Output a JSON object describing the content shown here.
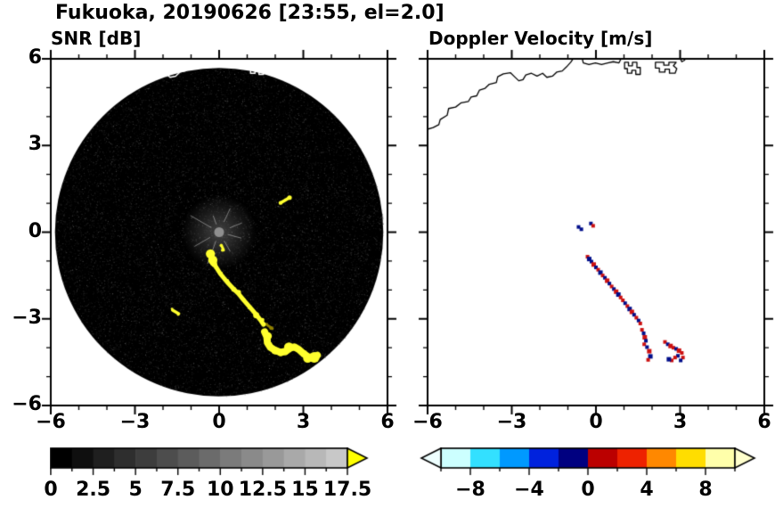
{
  "figure": {
    "title": "Fukuoka, 20190626 [23:55, el=2.0]"
  },
  "panels": {
    "snr": {
      "title": "SNR [dB]"
    },
    "velocity": {
      "title": "Doppler Velocity [m/s]"
    }
  },
  "axes": {
    "xmin": -6,
    "xmax": 6,
    "minor_step": 1,
    "xtick_values": [
      -6,
      -3,
      0,
      3,
      6
    ],
    "xtick_labels": [
      "−6",
      "−3",
      "0",
      "3",
      "6"
    ],
    "ytick_values": [
      6,
      3,
      0,
      -3,
      -6
    ],
    "ytick_labels": [
      "6",
      "3",
      "0",
      "−3",
      "−6"
    ]
  },
  "coastline": [
    {
      "closed": false,
      "pts": [
        [
          -6.05,
          3.55
        ],
        [
          -5.8,
          3.62
        ],
        [
          -5.6,
          3.72
        ],
        [
          -5.55,
          3.9
        ],
        [
          -5.3,
          4.05
        ],
        [
          -5.25,
          4.28
        ],
        [
          -5.0,
          4.33
        ],
        [
          -4.8,
          4.48
        ],
        [
          -4.55,
          4.52
        ],
        [
          -4.45,
          4.68
        ],
        [
          -4.25,
          4.72
        ],
        [
          -4.15,
          4.92
        ],
        [
          -3.95,
          4.98
        ],
        [
          -3.8,
          5.12
        ],
        [
          -3.55,
          5.18
        ],
        [
          -3.5,
          5.38
        ],
        [
          -3.3,
          5.48
        ],
        [
          -3.05,
          5.52
        ],
        [
          -2.9,
          5.38
        ],
        [
          -2.75,
          5.24
        ],
        [
          -2.6,
          5.28
        ],
        [
          -2.5,
          5.44
        ],
        [
          -2.3,
          5.5
        ],
        [
          -2.1,
          5.4
        ],
        [
          -1.9,
          5.5
        ],
        [
          -1.75,
          5.36
        ],
        [
          -1.55,
          5.4
        ],
        [
          -1.4,
          5.54
        ],
        [
          -1.2,
          5.58
        ],
        [
          -1.05,
          5.72
        ],
        [
          -0.9,
          5.88
        ],
        [
          -0.78,
          6.05
        ]
      ]
    },
    {
      "closed": false,
      "pts": [
        [
          -0.5,
          6.05
        ],
        [
          -0.45,
          5.86
        ],
        [
          -0.25,
          5.8
        ],
        [
          -0.02,
          5.86
        ],
        [
          0.2,
          5.8
        ],
        [
          0.42,
          5.86
        ],
        [
          0.62,
          5.9
        ],
        [
          0.82,
          5.86
        ],
        [
          0.92,
          6.05
        ]
      ]
    },
    {
      "closed": true,
      "pts": [
        [
          1.02,
          5.88
        ],
        [
          1.02,
          5.66
        ],
        [
          1.12,
          5.66
        ],
        [
          1.12,
          5.5
        ],
        [
          1.28,
          5.5
        ],
        [
          1.28,
          5.6
        ],
        [
          1.42,
          5.6
        ],
        [
          1.42,
          5.46
        ],
        [
          1.58,
          5.46
        ],
        [
          1.58,
          5.7
        ],
        [
          1.46,
          5.7
        ],
        [
          1.46,
          5.88
        ],
        [
          1.3,
          5.88
        ],
        [
          1.3,
          5.76
        ],
        [
          1.16,
          5.76
        ],
        [
          1.16,
          5.88
        ]
      ]
    },
    {
      "closed": true,
      "pts": [
        [
          2.12,
          5.88
        ],
        [
          2.12,
          5.68
        ],
        [
          2.26,
          5.68
        ],
        [
          2.26,
          5.54
        ],
        [
          2.46,
          5.54
        ],
        [
          2.46,
          5.64
        ],
        [
          2.62,
          5.64
        ],
        [
          2.62,
          5.5
        ],
        [
          2.82,
          5.5
        ],
        [
          2.88,
          5.66
        ],
        [
          2.76,
          5.76
        ],
        [
          2.86,
          5.88
        ],
        [
          2.6,
          5.88
        ],
        [
          2.6,
          5.78
        ],
        [
          2.42,
          5.78
        ],
        [
          2.42,
          5.88
        ]
      ]
    },
    {
      "closed": false,
      "pts": [
        [
          3.0,
          6.02
        ],
        [
          3.06,
          5.9
        ],
        [
          3.18,
          5.96
        ]
      ]
    }
  ],
  "chart_data": [
    {
      "type": "heatmap",
      "panel": "snr",
      "title": "SNR [dB]",
      "xlim": [
        -6,
        6
      ],
      "ylim": [
        -6,
        6
      ],
      "scan_radius": 5.85,
      "background": "black noise-speckled scan disc centered at (0,0)",
      "colorbar": {
        "min": 0,
        "max": 17.5,
        "step": 1.25,
        "tick_values": [
          0,
          2.5,
          5,
          7.5,
          10,
          12.5,
          15,
          17.5
        ],
        "tick_labels": [
          "0",
          "2.5",
          "5",
          "7.5",
          "10",
          "12.5",
          "15",
          "17.5"
        ],
        "colors": [
          "#000000",
          "#0f0f0f",
          "#1f1f1f",
          "#2e2e2e",
          "#3d3d3d",
          "#4d4d4d",
          "#5c5c5c",
          "#6b6b6b",
          "#7b7b7b",
          "#8a8a8a",
          "#999999",
          "#a9a9a9",
          "#b8b8b8",
          "#c8c8c8"
        ],
        "over_arrow": "#ffff00"
      },
      "echo_features": [
        {
          "color": "#ffff2e",
          "width": 7,
          "pts": [
            [
              -0.32,
              -0.78
            ],
            [
              -0.22,
              -0.95
            ],
            [
              -0.18,
              -1.1
            ]
          ]
        },
        {
          "color": "#ffff2e",
          "width": 5,
          "pts": [
            [
              -0.18,
              -1.1
            ],
            [
              0.05,
              -1.45
            ],
            [
              0.28,
              -1.72
            ],
            [
              0.5,
              -1.95
            ],
            [
              0.68,
              -2.12
            ],
            [
              0.9,
              -2.38
            ],
            [
              1.1,
              -2.6
            ],
            [
              1.32,
              -2.85
            ],
            [
              1.5,
              -3.08
            ],
            [
              1.58,
              -3.2
            ]
          ]
        },
        {
          "color": "#ffff2e",
          "width": 8,
          "pts": [
            [
              1.62,
              -3.45
            ],
            [
              1.7,
              -3.62
            ],
            [
              1.72,
              -3.82
            ],
            [
              1.82,
              -3.98
            ],
            [
              1.98,
              -4.08
            ],
            [
              2.18,
              -4.16
            ],
            [
              2.38,
              -4.12
            ],
            [
              2.52,
              -4.02
            ],
            [
              2.68,
              -3.97
            ],
            [
              2.84,
              -4.06
            ],
            [
              3.0,
              -4.2
            ],
            [
              3.18,
              -4.32
            ],
            [
              3.36,
              -4.34
            ],
            [
              3.5,
              -4.26
            ]
          ]
        },
        {
          "color": "#ffff2e",
          "width": 3.5,
          "pts": [
            [
              2.2,
              1.02
            ],
            [
              2.48,
              1.18
            ]
          ]
        },
        {
          "color": "#ffff2e",
          "width": 3.5,
          "pts": [
            [
              -1.66,
              -2.7
            ],
            [
              -1.44,
              -2.82
            ]
          ]
        },
        {
          "color": "#ffff2e",
          "width": 3,
          "pts": [
            [
              0.1,
              -0.5
            ],
            [
              0.16,
              -0.62
            ]
          ]
        },
        {
          "color": "#8f7f00",
          "width": 3,
          "pts": [
            [
              1.72,
              -3.22
            ],
            [
              1.9,
              -3.34
            ]
          ]
        }
      ],
      "echo_value_note": "yellow = above colorbar max (> 17.5 dB)"
    },
    {
      "type": "scatter",
      "panel": "velocity",
      "title": "Doppler Velocity [m/s]",
      "xlim": [
        -6,
        6
      ],
      "ylim": [
        -6,
        6
      ],
      "neg_color": "#000e8a",
      "pos_color": "#cc1111",
      "colorbar": {
        "min": -10,
        "max": 10,
        "step": 2,
        "tick_values": [
          -8,
          -4,
          0,
          4,
          8
        ],
        "tick_labels": [
          "−8",
          "−4",
          "0",
          "4",
          "8"
        ],
        "colors": [
          "#ccffff",
          "#33e0ff",
          "#0099ff",
          "#0022dd",
          "#000080",
          "#bb0000",
          "#ee2200",
          "#ff8800",
          "#ffdd00",
          "#ffffaa"
        ],
        "under_arrow": "#eeffff",
        "over_arrow": "#ffffcc"
      },
      "points": [
        [
          -0.62,
          0.18,
          -1.0
        ],
        [
          -0.52,
          0.1,
          -1.0
        ],
        [
          -0.18,
          0.3,
          -1.0
        ],
        [
          -0.1,
          0.22,
          0.8
        ],
        [
          -0.3,
          -0.85,
          0.9
        ],
        [
          -0.24,
          -0.93,
          -1.1
        ],
        [
          -0.16,
          -1.02,
          -0.7
        ],
        [
          -0.08,
          -1.12,
          1.2
        ],
        [
          0.0,
          -1.22,
          -0.9
        ],
        [
          0.08,
          -1.3,
          1.0
        ],
        [
          0.16,
          -1.4,
          -1.2
        ],
        [
          0.24,
          -1.5,
          0.8
        ],
        [
          0.32,
          -1.58,
          -0.6
        ],
        [
          0.4,
          -1.68,
          1.1
        ],
        [
          0.48,
          -1.78,
          -1.0
        ],
        [
          0.56,
          -1.88,
          0.9
        ],
        [
          0.64,
          -1.97,
          -0.8
        ],
        [
          0.72,
          -2.06,
          1.3
        ],
        [
          0.8,
          -2.16,
          -1.1
        ],
        [
          0.88,
          -2.26,
          0.7
        ],
        [
          0.96,
          -2.36,
          1.0
        ],
        [
          1.04,
          -2.46,
          -0.9
        ],
        [
          1.12,
          -2.56,
          0.8
        ],
        [
          1.2,
          -2.66,
          -1.2
        ],
        [
          1.28,
          -2.76,
          1.1
        ],
        [
          1.36,
          -2.86,
          -0.7
        ],
        [
          1.44,
          -2.96,
          0.9
        ],
        [
          1.52,
          -3.06,
          -1.0
        ],
        [
          1.58,
          -3.16,
          0.6
        ],
        [
          1.64,
          -3.38,
          0.9
        ],
        [
          1.7,
          -3.5,
          -0.8
        ],
        [
          1.74,
          -3.64,
          1.1
        ],
        [
          1.78,
          -3.76,
          -1.0
        ],
        [
          1.72,
          -3.88,
          0.7
        ],
        [
          1.82,
          -3.98,
          -0.9
        ],
        [
          1.9,
          -4.12,
          1.2
        ],
        [
          1.94,
          -4.3,
          -1.1
        ],
        [
          1.86,
          -4.42,
          0.8
        ],
        [
          2.46,
          -3.8,
          1.0
        ],
        [
          2.56,
          -3.88,
          -0.9
        ],
        [
          2.66,
          -3.94,
          1.1
        ],
        [
          2.76,
          -4.0,
          0.8
        ],
        [
          2.86,
          -4.04,
          -1.0
        ],
        [
          2.96,
          -4.1,
          1.2
        ],
        [
          3.06,
          -4.18,
          0.9
        ],
        [
          2.92,
          -4.28,
          -0.8
        ],
        [
          2.82,
          -4.34,
          1.0
        ],
        [
          2.7,
          -4.44,
          0.7
        ],
        [
          2.6,
          -4.4,
          -1.1
        ],
        [
          3.1,
          -4.34,
          0.9
        ],
        [
          3.02,
          -4.44,
          -0.6
        ]
      ]
    }
  ]
}
